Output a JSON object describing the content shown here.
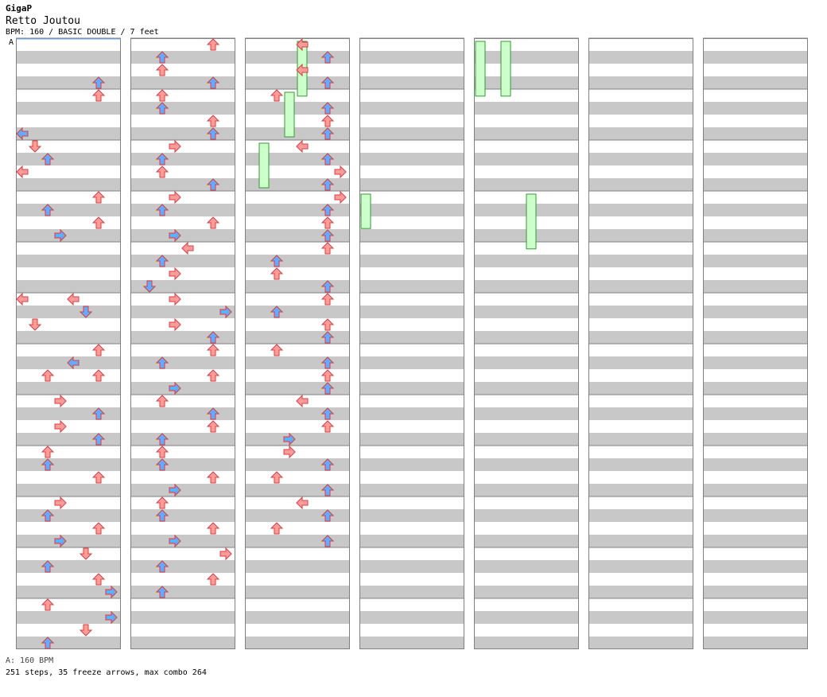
{
  "header": {
    "artist": "GigaP",
    "title": "Retto Joutou",
    "info": "BPM: 160 / BASIC DOUBLE / 7 feet",
    "bpm_marker": "A"
  },
  "footer": {
    "bpm_legend": "A: 160 BPM",
    "stats": "251 steps, 35 freeze arrows, max combo 264"
  },
  "colors": {
    "quarter_arrow": "#ff9a9a",
    "eighth_arrow": "#66aaff",
    "freeze": "#ccffcc",
    "stripe": "#c8c8c8",
    "border": "#808080"
  },
  "chart_data": {
    "type": "step-chart",
    "columns": 7,
    "measures_per_column": 12,
    "lanes": [
      "L",
      "D",
      "U",
      "R",
      "L",
      "D",
      "U",
      "R"
    ],
    "notes": [
      [
        0,
        0,
        7,
        0
      ],
      [
        0,
        0,
        3,
        6
      ],
      [
        0,
        1,
        0,
        6
      ],
      [
        0,
        1,
        6,
        0
      ],
      [
        0,
        2,
        0,
        1
      ],
      [
        0,
        2,
        1,
        2
      ],
      [
        0,
        3,
        0,
        6
      ],
      [
        0,
        3,
        1,
        2
      ],
      [
        0,
        3,
        2,
        6
      ],
      [
        0,
        3,
        3,
        3
      ],
      [
        0,
        4,
        4,
        0
      ],
      [
        0,
        4,
        6,
        1
      ],
      [
        0,
        5,
        0,
        4
      ],
      [
        0,
        5,
        1,
        5
      ],
      [
        0,
        6,
        0,
        6
      ],
      [
        0,
        6,
        1,
        4
      ],
      [
        0,
        6,
        2,
        2
      ],
      [
        0,
        6,
        2,
        6
      ],
      [
        0,
        7,
        0,
        3
      ],
      [
        0,
        7,
        1,
        6
      ],
      [
        0,
        7,
        2,
        3
      ],
      [
        0,
        7,
        3,
        6
      ],
      [
        0,
        8,
        0,
        2
      ],
      [
        0,
        8,
        1,
        2
      ],
      [
        0,
        8,
        2,
        6
      ],
      [
        0,
        9,
        0,
        3
      ],
      [
        0,
        9,
        1,
        2
      ],
      [
        0,
        9,
        2,
        6
      ],
      [
        0,
        9,
        3,
        3
      ],
      [
        0,
        10,
        0,
        5
      ],
      [
        0,
        10,
        1,
        2
      ],
      [
        0,
        10,
        2,
        6
      ],
      [
        0,
        10,
        3,
        7
      ],
      [
        0,
        11,
        0,
        2
      ],
      [
        0,
        11,
        1,
        7
      ],
      [
        0,
        11,
        2,
        5
      ],
      [
        0,
        11,
        3,
        2
      ],
      [
        1,
        0,
        0,
        6
      ],
      [
        1,
        0,
        1,
        2
      ],
      [
        1,
        0,
        2,
        2
      ],
      [
        1,
        0,
        3,
        6
      ],
      [
        1,
        1,
        0,
        2
      ],
      [
        1,
        1,
        1,
        2
      ],
      [
        1,
        1,
        2,
        6
      ],
      [
        1,
        1,
        3,
        6
      ],
      [
        1,
        2,
        0,
        3
      ],
      [
        1,
        2,
        1,
        2
      ],
      [
        1,
        2,
        2,
        2
      ],
      [
        1,
        2,
        3,
        6
      ],
      [
        1,
        3,
        0,
        3
      ],
      [
        1,
        3,
        1,
        2
      ],
      [
        1,
        3,
        2,
        6
      ],
      [
        1,
        3,
        3,
        3
      ],
      [
        1,
        4,
        0,
        4
      ],
      [
        1,
        4,
        1,
        2
      ],
      [
        1,
        4,
        2,
        3
      ],
      [
        1,
        4,
        3,
        1
      ],
      [
        1,
        5,
        0,
        3
      ],
      [
        1,
        5,
        1,
        7
      ],
      [
        1,
        5,
        2,
        3
      ],
      [
        1,
        5,
        3,
        6
      ],
      [
        1,
        6,
        0,
        6
      ],
      [
        1,
        6,
        1,
        2
      ],
      [
        1,
        6,
        2,
        6
      ],
      [
        1,
        6,
        3,
        3
      ],
      [
        1,
        7,
        0,
        2
      ],
      [
        1,
        7,
        1,
        6
      ],
      [
        1,
        7,
        2,
        6
      ],
      [
        1,
        7,
        3,
        2
      ],
      [
        1,
        8,
        0,
        2
      ],
      [
        1,
        8,
        1,
        2
      ],
      [
        1,
        8,
        2,
        6
      ],
      [
        1,
        8,
        3,
        3
      ],
      [
        1,
        9,
        0,
        2
      ],
      [
        1,
        9,
        1,
        2
      ],
      [
        1,
        9,
        2,
        6
      ],
      [
        1,
        9,
        3,
        3
      ],
      [
        1,
        10,
        0,
        7
      ],
      [
        1,
        10,
        1,
        2
      ],
      [
        1,
        10,
        2,
        6
      ],
      [
        1,
        10,
        3,
        2
      ],
      [
        2,
        0,
        0,
        4
      ],
      [
        2,
        0,
        1,
        6
      ],
      [
        2,
        0,
        2,
        4
      ],
      [
        2,
        0,
        3,
        6
      ],
      [
        2,
        1,
        0,
        2
      ],
      [
        2,
        1,
        1,
        6
      ],
      [
        2,
        1,
        2,
        6
      ],
      [
        2,
        1,
        3,
        6
      ],
      [
        2,
        2,
        0,
        4
      ],
      [
        2,
        2,
        1,
        6
      ],
      [
        2,
        2,
        2,
        7
      ],
      [
        2,
        2,
        3,
        6
      ],
      [
        2,
        3,
        0,
        7
      ],
      [
        2,
        3,
        1,
        6
      ],
      [
        2,
        3,
        2,
        6
      ],
      [
        2,
        3,
        3,
        6
      ],
      [
        2,
        4,
        0,
        6
      ],
      [
        2,
        4,
        1,
        2
      ],
      [
        2,
        4,
        2,
        2
      ],
      [
        2,
        4,
        3,
        6
      ],
      [
        2,
        5,
        0,
        6
      ],
      [
        2,
        5,
        1,
        2
      ],
      [
        2,
        5,
        2,
        6
      ],
      [
        2,
        5,
        3,
        6
      ],
      [
        2,
        6,
        0,
        2
      ],
      [
        2,
        6,
        1,
        6
      ],
      [
        2,
        6,
        2,
        6
      ],
      [
        2,
        6,
        3,
        6
      ],
      [
        2,
        7,
        0,
        4
      ],
      [
        2,
        7,
        1,
        6
      ],
      [
        2,
        7,
        2,
        6
      ],
      [
        2,
        7,
        3,
        3
      ],
      [
        2,
        8,
        0,
        3
      ],
      [
        2,
        8,
        1,
        6
      ],
      [
        2,
        8,
        2,
        2
      ],
      [
        2,
        8,
        3,
        6
      ],
      [
        2,
        9,
        0,
        4
      ],
      [
        2,
        9,
        1,
        6
      ],
      [
        2,
        9,
        2,
        2
      ],
      [
        2,
        9,
        3,
        6
      ]
    ]
  }
}
